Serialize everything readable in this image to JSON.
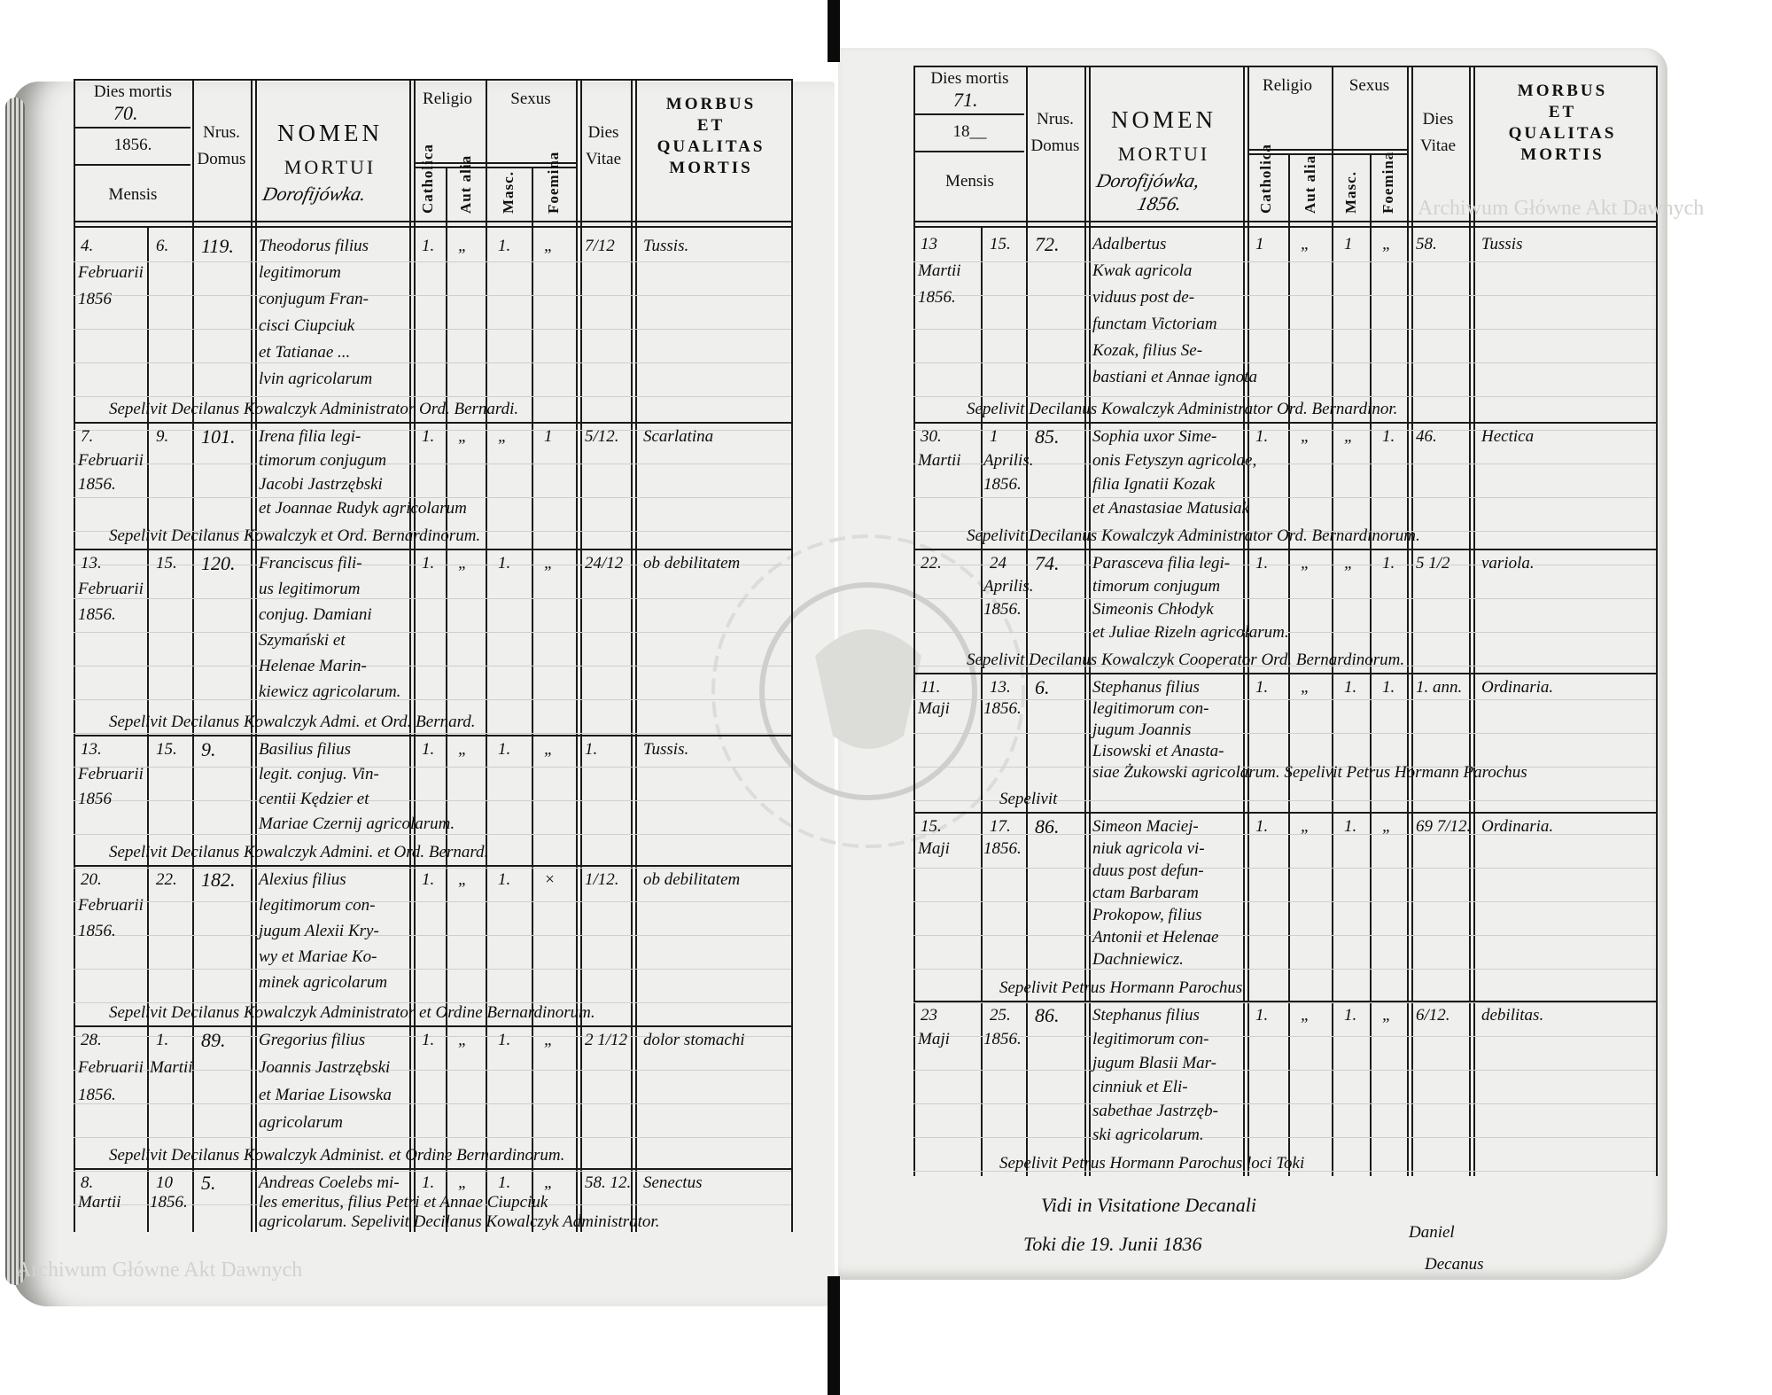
{
  "header": {
    "dies_mortis": "Dies mortis",
    "mensis": "Mensis",
    "nrus": "Nrus.",
    "domus": "Domus",
    "nomen": "NOMEN",
    "mortui": "MORTUI",
    "religio": "Religio",
    "catholica": "Catholica",
    "aut_alia": "Aut alia",
    "sexus": "Sexus",
    "masc": "Masc.",
    "foemina": "Foemina",
    "dies": "Dies",
    "vitae": "Vitae",
    "morbus": [
      "MORBUS",
      "ET",
      "QUALITAS",
      "MORTIS"
    ]
  },
  "pages": [
    {
      "page_number": "70.",
      "year": "1856.",
      "place": [
        "Dorofijówka."
      ],
      "entries": [
        {
          "day": "4.",
          "day_lines": [
            "Februarii",
            "1856"
          ],
          "burial": "6.",
          "burial_lines": [],
          "domus": "119.",
          "name": [
            "Theodorus filius",
            "legitimorum",
            "conjugum Fran-",
            "cisci Ciupciuk",
            "et Tatianae ...",
            "lvin agricolarum"
          ],
          "catholica": "1.",
          "aut_alia": "„",
          "masc": "1.",
          "foemina": "„",
          "dies_vitae": "7/12",
          "morbus": "Tussis.",
          "sepelivit": "Sepelivit Decilanus Kowalczyk Administrator Ord. Bernardi."
        },
        {
          "day": "7.",
          "day_lines": [
            "Februarii",
            "1856."
          ],
          "burial": "9.",
          "burial_lines": [],
          "domus": "101.",
          "name": [
            "Irena filia legi-",
            "timorum conjugum",
            "Jacobi Jastrzębski",
            "et Joannae Rudyk agricolarum"
          ],
          "catholica": "1.",
          "aut_alia": "„",
          "masc": "„",
          "foemina": "1",
          "dies_vitae": "5/12.",
          "morbus": "Scarlatina",
          "sepelivit": "Sepelivit Decilanus Kowalczyk et Ord. Bernardinorum."
        },
        {
          "day": "13.",
          "day_lines": [
            "Februarii",
            "1856."
          ],
          "burial": "15.",
          "burial_lines": [],
          "domus": "120.",
          "name": [
            "Franciscus fili-",
            "us legitimorum",
            "conjug. Damiani",
            "Szymański et",
            "Helenae Marin-",
            "kiewicz agricolarum."
          ],
          "catholica": "1.",
          "aut_alia": "„",
          "masc": "1.",
          "foemina": "„",
          "dies_vitae": "24/12",
          "morbus": "ob debilitatem",
          "sepelivit": "Sepelivit Decilanus Kowalczyk Admi. et Ord. Bernard."
        },
        {
          "day": "13.",
          "day_lines": [
            "Februarii",
            "1856"
          ],
          "burial": "15.",
          "burial_lines": [],
          "domus": "9.",
          "name": [
            "Basilius filius",
            "legit. conjug. Vin-",
            "centii Kędzier et",
            "Mariae Czernij agricolarum."
          ],
          "catholica": "1.",
          "aut_alia": "„",
          "masc": "1.",
          "foemina": "„",
          "dies_vitae": "1.",
          "morbus": "Tussis.",
          "sepelivit": "Sepelivit Decilanus Kowalczyk Admini. et Ord. Bernard."
        },
        {
          "day": "20.",
          "day_lines": [
            "Februarii",
            "1856."
          ],
          "burial": "22.",
          "burial_lines": [],
          "domus": "182.",
          "name": [
            "Alexius filius",
            "legitimorum con-",
            "jugum Alexii Kry-",
            "wy et Mariae Ko-",
            "minek agricolarum"
          ],
          "catholica": "1.",
          "aut_alia": "„",
          "masc": "1.",
          "foemina": "×",
          "dies_vitae": "1/12.",
          "morbus": "ob debilitatem",
          "sepelivit": "Sepelivit Decilanus Kowalczyk Administrator et Ordine Bernardinorum."
        },
        {
          "day": "28.",
          "day_lines": [
            "Februarii",
            "1856."
          ],
          "burial": "1.",
          "burial_lines": [
            "Martii"
          ],
          "domus": "89.",
          "name": [
            "Gregorius filius",
            "Joannis Jastrzębski",
            "et Mariae Lisowska",
            "agricolarum"
          ],
          "catholica": "1.",
          "aut_alia": "„",
          "masc": "1.",
          "foemina": "„",
          "dies_vitae": "2 1/12",
          "morbus": "dolor stomachi",
          "sepelivit": "Sepelivit Decilanus Kowalczyk Administ. et Ordine Bernardinorum."
        },
        {
          "day": "8.",
          "day_lines": [
            "Martii"
          ],
          "burial": "10",
          "burial_lines": [
            "1856."
          ],
          "domus": "5.",
          "name": [
            "Andreas Coelebs mi-",
            "les emeritus, filius Petri et Annae Ciupciuk",
            "agricolarum. Sepelivit Decilanus Kowalczyk Administrator."
          ],
          "catholica": "1.",
          "aut_alia": "„",
          "masc": "1.",
          "foemina": "„",
          "dies_vitae": "58. 12.",
          "morbus": "Senectus",
          "sepelivit": ""
        }
      ]
    },
    {
      "page_number": "71.",
      "year": "18__",
      "place": [
        "Dorofijówka,",
        "1856."
      ],
      "entries": [
        {
          "day": "13",
          "day_lines": [
            "Martii",
            "1856."
          ],
          "burial": "15.",
          "burial_lines": [],
          "domus": "72.",
          "name": [
            "Adalbertus",
            "Kwak agricola",
            "viduus post de-",
            "functam Victoriam",
            "Kozak, filius Se-",
            "bastiani et Annae ignota"
          ],
          "catholica": "1",
          "aut_alia": "„",
          "masc": "1",
          "foemina": "„",
          "dies_vitae": "58.",
          "morbus": "Tussis",
          "sepelivit": "Sepelivit Decilanus Kowalczyk Administrator Ord. Bernardinor."
        },
        {
          "day": "30.",
          "day_lines": [
            "Martii"
          ],
          "burial": "1",
          "burial_lines": [
            "Aprilis.",
            "1856."
          ],
          "domus": "85.",
          "name": [
            "Sophia uxor Sime-",
            "onis Fetyszyn agricolae,",
            "filia Ignatii Kozak",
            "et Anastasiae Matusiak"
          ],
          "catholica": "1.",
          "aut_alia": "„",
          "masc": "„",
          "foemina": "1.",
          "dies_vitae": "46.",
          "morbus": "Hectica",
          "sepelivit": "Sepelivit Decilanus Kowalczyk Administrator Ord. Bernardinorum."
        },
        {
          "day": "22.",
          "day_lines": [],
          "burial": "24",
          "burial_lines": [
            "Aprilis.",
            "1856."
          ],
          "domus": "74.",
          "name": [
            "Parasceva filia legi-",
            "timorum conjugum",
            "Simeonis Chłodyk",
            "et Juliae Rizeln agricolarum."
          ],
          "catholica": "1.",
          "aut_alia": "„",
          "masc": "„",
          "foemina": "1.",
          "dies_vitae": "5 1/2",
          "morbus": "variola.",
          "sepelivit": "Sepelivit Decilanus Kowalczyk Cooperator Ord. Bernardinorum."
        },
        {
          "day": "11.",
          "day_lines": [
            "Maji"
          ],
          "burial": "13.",
          "burial_lines": [
            "1856."
          ],
          "domus": "6.",
          "name": [
            "Stephanus filius",
            "legitimorum con-",
            "jugum Joannis",
            "Lisowski et Anasta-",
            "siae Żukowski agricolarum. Sepelivit Petrus Hormann Parochus"
          ],
          "catholica": "1.",
          "aut_alia": "„",
          "masc": "1.",
          "foemina": "1.",
          "dies_vitae": "1. ann.",
          "morbus": "Ordinaria.",
          "sepelivit": "Sepelivit"
        },
        {
          "day": "15.",
          "day_lines": [
            "Maji"
          ],
          "burial": "17.",
          "burial_lines": [
            "1856."
          ],
          "domus": "86.",
          "name": [
            "Simeon Maciej-",
            "niuk agricola vi-",
            "duus post defun-",
            "ctam Barbaram",
            "Prokopow, filius",
            "Antonii et Helenae",
            "Dachniewicz."
          ],
          "catholica": "1.",
          "aut_alia": "„",
          "masc": "1.",
          "foemina": "„",
          "dies_vitae": "69 7/12.",
          "morbus": "Ordinaria.",
          "sepelivit": "Sepelivit Petrus Hormann Parochus"
        },
        {
          "day": "23",
          "day_lines": [
            "Maji"
          ],
          "burial": "25.",
          "burial_lines": [
            "1856."
          ],
          "domus": "86.",
          "name": [
            "Stephanus filius",
            "legitimorum con-",
            "jugum Blasii Mar-",
            "cinniuk et Eli-",
            "sabethae Jastrzęb-",
            "ski agricolarum."
          ],
          "catholica": "1.",
          "aut_alia": "„",
          "masc": "1.",
          "foemina": "„",
          "dies_vitae": "6/12.",
          "morbus": "debilitas.",
          "sepelivit": "Sepelivit Petrus Hormann Parochus loci Toki"
        }
      ],
      "visitation": [
        "Vidi in Visitatione Decanali",
        "Toki die 19. Junii 1836"
      ],
      "signature": [
        "Daniel",
        "Decanus"
      ]
    }
  ],
  "watermarks": [
    "Archiwum Główne Akt Dawnych",
    "Archiwum Główne Akt Dawnych"
  ],
  "stamp_text": "ARCHIWUM GŁÓWNE AKT DAWNYCH"
}
